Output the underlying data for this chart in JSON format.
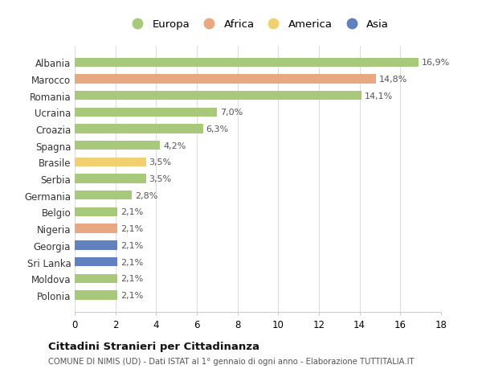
{
  "countries": [
    "Albania",
    "Marocco",
    "Romania",
    "Ucraina",
    "Croazia",
    "Spagna",
    "Brasile",
    "Serbia",
    "Germania",
    "Belgio",
    "Nigeria",
    "Georgia",
    "Sri Lanka",
    "Moldova",
    "Polonia"
  ],
  "values": [
    16.9,
    14.8,
    14.1,
    7.0,
    6.3,
    4.2,
    3.5,
    3.5,
    2.8,
    2.1,
    2.1,
    2.1,
    2.1,
    2.1,
    2.1
  ],
  "labels": [
    "16,9%",
    "14,8%",
    "14,1%",
    "7,0%",
    "6,3%",
    "4,2%",
    "3,5%",
    "3,5%",
    "2,8%",
    "2,1%",
    "2,1%",
    "2,1%",
    "2,1%",
    "2,1%",
    "2,1%"
  ],
  "continents": [
    "Europa",
    "Africa",
    "Europa",
    "Europa",
    "Europa",
    "Europa",
    "America",
    "Europa",
    "Europa",
    "Europa",
    "Africa",
    "Asia",
    "Asia",
    "Europa",
    "Europa"
  ],
  "colors": {
    "Europa": "#a8c87a",
    "Africa": "#e8a882",
    "America": "#f0d070",
    "Asia": "#6080c0"
  },
  "legend_order": [
    "Europa",
    "Africa",
    "America",
    "Asia"
  ],
  "title": "Cittadini Stranieri per Cittadinanza",
  "subtitle": "COMUNE DI NIMIS (UD) - Dati ISTAT al 1° gennaio di ogni anno - Elaborazione TUTTITALIA.IT",
  "xlim": [
    0,
    18
  ],
  "xticks": [
    0,
    2,
    4,
    6,
    8,
    10,
    12,
    14,
    16,
    18
  ],
  "background_color": "#ffffff",
  "grid_color": "#dddddd"
}
